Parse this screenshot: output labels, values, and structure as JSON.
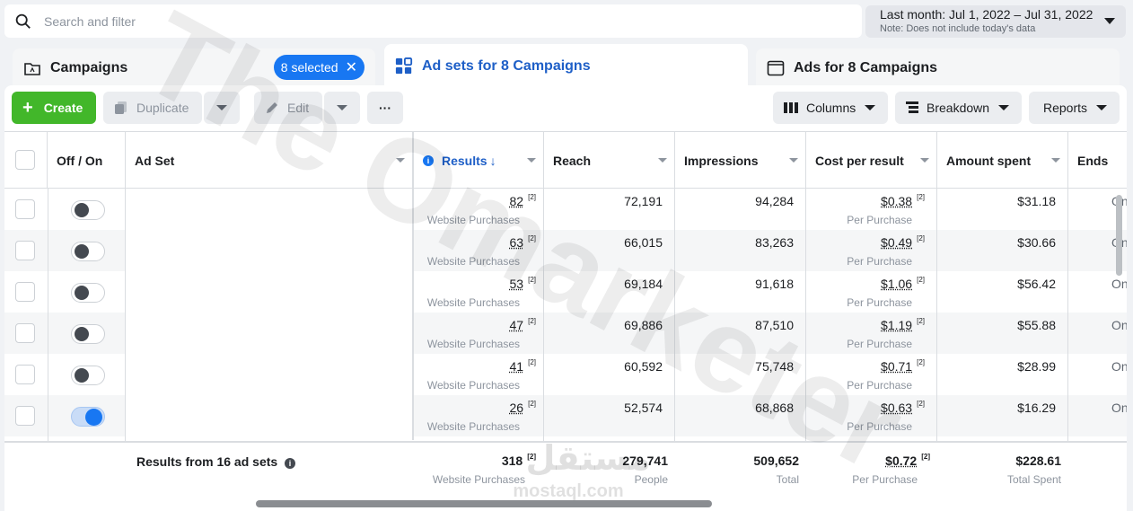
{
  "search": {
    "placeholder": "Search and filter"
  },
  "date_range": {
    "label": "Last month: Jul 1, 2022 – Jul 31, 2022",
    "note": "Note: Does not include today's data"
  },
  "tabs": {
    "campaigns": {
      "label": "Campaigns",
      "selected_badge": "8 selected"
    },
    "adsets": {
      "label": "Ad sets for 8 Campaigns"
    },
    "ads": {
      "label": "Ads for 8 Campaigns"
    }
  },
  "toolbar": {
    "create": "Create",
    "duplicate": "Duplicate",
    "edit": "Edit",
    "more": "···",
    "columns": "Columns",
    "breakdown": "Breakdown",
    "reports": "Reports"
  },
  "columns": {
    "offon": "Off / On",
    "adset": "Ad Set",
    "results": "Results",
    "reach": "Reach",
    "impressions": "Impressions",
    "cost": "Cost per result",
    "spent": "Amount spent",
    "ends": "Ends"
  },
  "rows": [
    {
      "on": false,
      "results": "82",
      "results_sub": "Website Purchases",
      "reach": "72,191",
      "impressions": "94,284",
      "cost": "$0.38",
      "cost_sub": "Per Purchase",
      "spent": "$31.18",
      "ends": "On"
    },
    {
      "on": false,
      "results": "63",
      "results_sub": "Website Purchases",
      "reach": "66,015",
      "impressions": "83,263",
      "cost": "$0.49",
      "cost_sub": "Per Purchase",
      "spent": "$30.66",
      "ends": "On"
    },
    {
      "on": false,
      "results": "53",
      "results_sub": "Website Purchases",
      "reach": "69,184",
      "impressions": "91,618",
      "cost": "$1.06",
      "cost_sub": "Per Purchase",
      "spent": "$56.42",
      "ends": "On"
    },
    {
      "on": false,
      "results": "47",
      "results_sub": "Website Purchases",
      "reach": "69,886",
      "impressions": "87,510",
      "cost": "$1.19",
      "cost_sub": "Per Purchase",
      "spent": "$55.88",
      "ends": "On"
    },
    {
      "on": false,
      "results": "41",
      "results_sub": "Website Purchases",
      "reach": "60,592",
      "impressions": "75,748",
      "cost": "$0.71",
      "cost_sub": "Per Purchase",
      "spent": "$28.99",
      "ends": "On"
    },
    {
      "on": true,
      "results": "26",
      "results_sub": "Website Purchases",
      "reach": "52,574",
      "impressions": "68,868",
      "cost": "$0.63",
      "cost_sub": "Per Purchase",
      "spent": "$16.29",
      "ends": "On"
    }
  ],
  "footnote_mark": "[2]",
  "totals": {
    "label": "Results from 16 ad sets",
    "results": "318",
    "results_sub": "Website Purchases",
    "reach": "279,741",
    "reach_sub": "People",
    "impressions": "509,652",
    "impressions_sub": "Total",
    "cost": "$0.72",
    "cost_sub": "Per Purchase",
    "spent": "$228.61",
    "spent_sub": "Total Spent"
  },
  "watermark": {
    "text": "The Omarketer",
    "brand_ar": "مستقل",
    "brand_url": "mostaql.com"
  },
  "colors": {
    "accent": "#1877f2",
    "create_green": "#42b72a",
    "active_tab_text": "#1e5fc7"
  }
}
